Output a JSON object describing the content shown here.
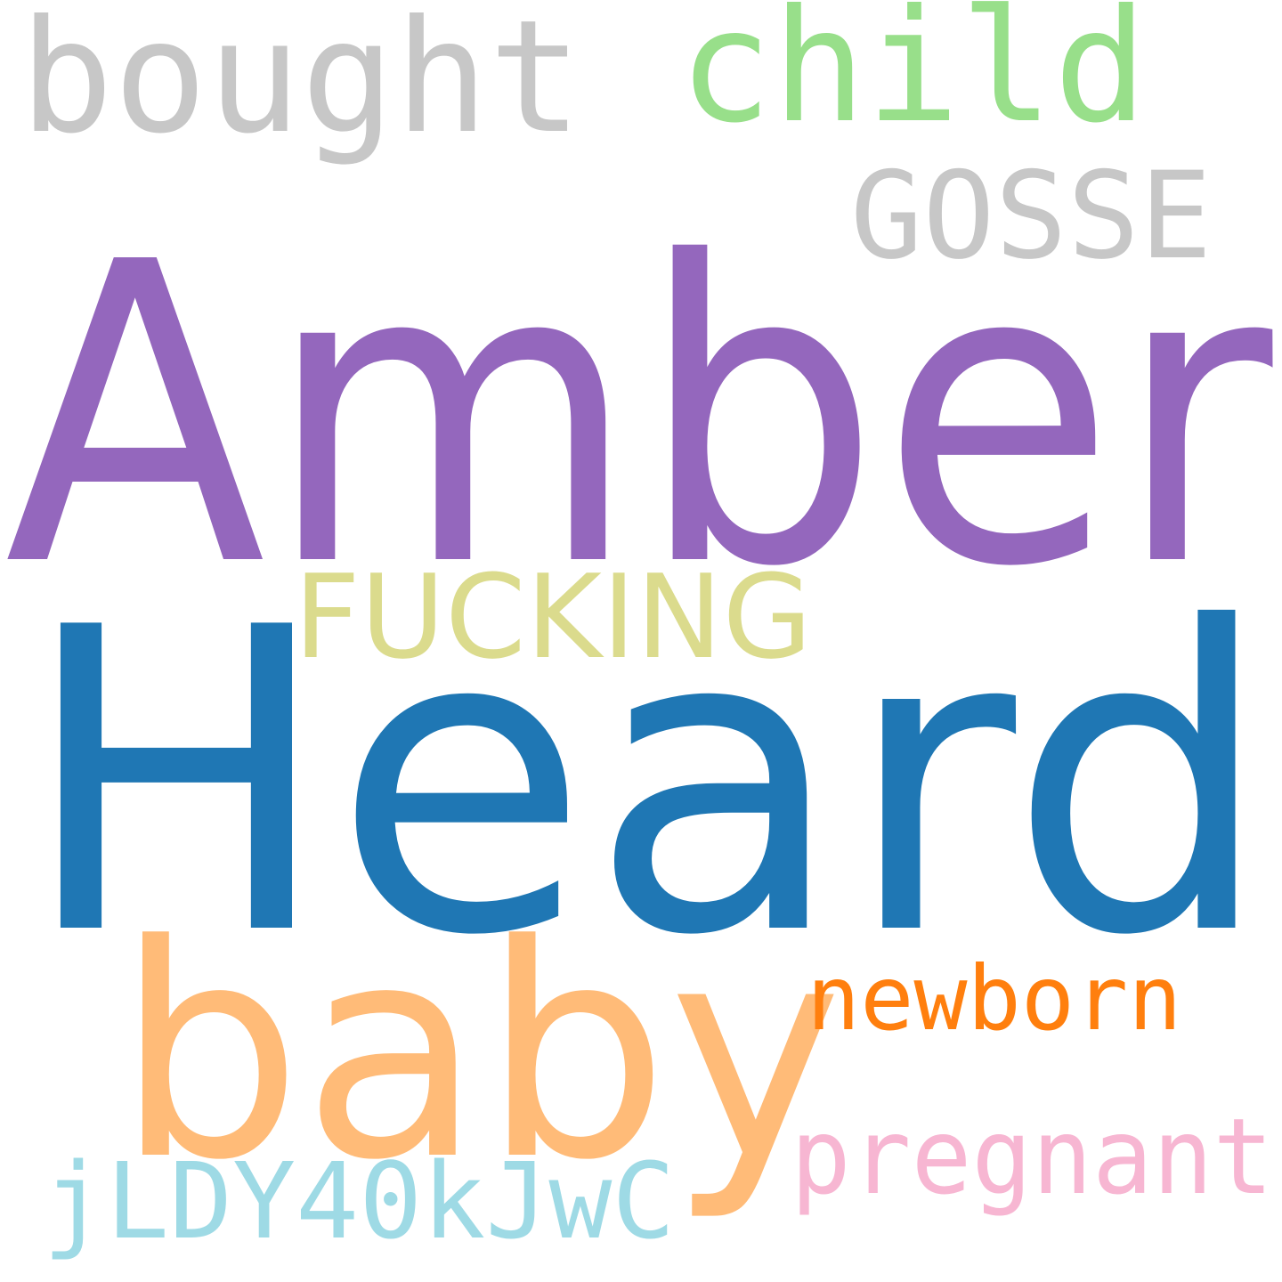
{
  "words": [
    {
      "id": "bought",
      "text": "bought",
      "color": "#c7c7c7"
    },
    {
      "id": "child",
      "text": "child",
      "color": "#98df8a"
    },
    {
      "id": "gosse",
      "text": "GOSSE",
      "color": "#c7c7c7"
    },
    {
      "id": "amber",
      "text": "Amber",
      "color": "#9467bd"
    },
    {
      "id": "fucking",
      "text": "FUCKING",
      "color": "#dbdb8d"
    },
    {
      "id": "heard",
      "text": "Heard",
      "color": "#1f77b4"
    },
    {
      "id": "baby",
      "text": "baby",
      "color": "#ffbb78"
    },
    {
      "id": "newborn",
      "text": "newborn",
      "color": "#ff7f0e"
    },
    {
      "id": "pregnant",
      "text": "pregnant",
      "color": "#f7b6d2"
    },
    {
      "id": "jldy",
      "text": "jLDY40kJwC",
      "color": "#9edae5"
    }
  ]
}
